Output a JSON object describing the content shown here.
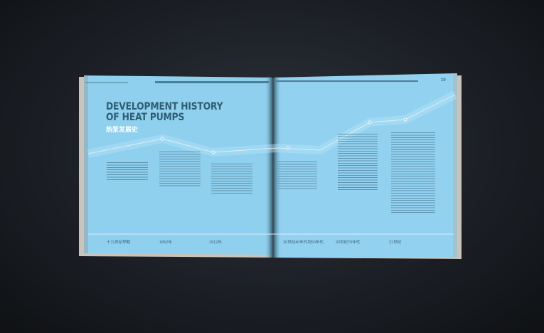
{
  "header": {
    "title": "DEVELOPMENT HISTORY\nOF HEAT PUMPS",
    "title_line1": "DEVELOPMENT HISTORY",
    "title_line2": "OF HEAT PUMPS",
    "subtitle": "热泵发展史",
    "page_number": "10"
  },
  "timeline": {
    "labels": [
      "十九世纪早期",
      "1852年",
      "1912年",
      "20世纪40年代到50年代",
      "20世纪70年代",
      "21世纪"
    ]
  },
  "colors": {
    "page": "#8fd0ee",
    "background": "#1c2026",
    "title": "#2f5d74"
  }
}
